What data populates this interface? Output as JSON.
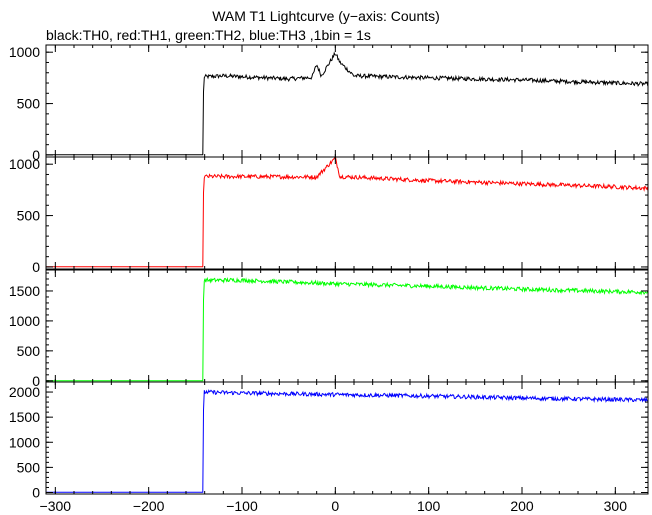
{
  "chart_data": {
    "type": "line",
    "title": "WAM T1 Lightcurve (y−axis: Counts)",
    "subtitle": "black:TH0, red:TH1, green:TH2, blue:TH3 ,1bin = 1s",
    "xlim": [
      -310,
      335
    ],
    "x_ticks": [
      -300,
      -200,
      -100,
      0,
      100,
      200,
      300
    ],
    "x_tick_labels": [
      "−300",
      "−200",
      "−100",
      "0",
      "100",
      "200",
      "300"
    ],
    "grid": false,
    "panels": [
      {
        "channel": "TH0",
        "color": "#000000",
        "ylim": [
          -20,
          1070
        ],
        "y_ticks": [
          0,
          500,
          1000
        ],
        "y_tick_labels": [
          "0",
          "500",
          "1000"
        ],
        "points": [
          [
            -310,
            1
          ],
          [
            -142,
            1
          ],
          [
            -141,
            760
          ],
          [
            -120,
            770
          ],
          [
            -50,
            740
          ],
          [
            -25,
            755
          ],
          [
            -20,
            880
          ],
          [
            -15,
            770
          ],
          [
            0,
            990
          ],
          [
            5,
            900
          ],
          [
            20,
            770
          ],
          [
            100,
            750
          ],
          [
            200,
            730
          ],
          [
            300,
            700
          ],
          [
            335,
            690
          ]
        ]
      },
      {
        "channel": "TH1",
        "color": "#ff0000",
        "ylim": [
          -20,
          1070
        ],
        "y_ticks": [
          0,
          500,
          1000
        ],
        "y_tick_labels": [
          "0",
          "500",
          "1000"
        ],
        "points": [
          [
            -310,
            1
          ],
          [
            -142,
            1
          ],
          [
            -141,
            880
          ],
          [
            -100,
            880
          ],
          [
            -20,
            875
          ],
          [
            0,
            1060
          ],
          [
            5,
            880
          ],
          [
            100,
            840
          ],
          [
            200,
            810
          ],
          [
            300,
            780
          ],
          [
            335,
            765
          ]
        ]
      },
      {
        "channel": "TH2",
        "color": "#00ff00",
        "ylim": [
          -20,
          1850
        ],
        "y_ticks": [
          0,
          500,
          1000,
          1500
        ],
        "y_tick_labels": [
          "0",
          "500",
          "1000",
          "1500"
        ],
        "points": [
          [
            -310,
            2
          ],
          [
            -142,
            2
          ],
          [
            -141,
            1680
          ],
          [
            -100,
            1680
          ],
          [
            0,
            1620
          ],
          [
            100,
            1580
          ],
          [
            200,
            1530
          ],
          [
            300,
            1490
          ],
          [
            335,
            1480
          ]
        ]
      },
      {
        "channel": "TH3",
        "color": "#0000ff",
        "ylim": [
          -30,
          2200
        ],
        "y_ticks": [
          0,
          500,
          1000,
          1500,
          2000
        ],
        "y_tick_labels": [
          "0",
          "500",
          "1000",
          "1500",
          "2000"
        ],
        "points": [
          [
            -310,
            3
          ],
          [
            -142,
            3
          ],
          [
            -141,
            2000
          ],
          [
            -100,
            1980
          ],
          [
            0,
            1950
          ],
          [
            100,
            1920
          ],
          [
            200,
            1880
          ],
          [
            300,
            1850
          ],
          [
            335,
            1840
          ]
        ]
      }
    ]
  }
}
